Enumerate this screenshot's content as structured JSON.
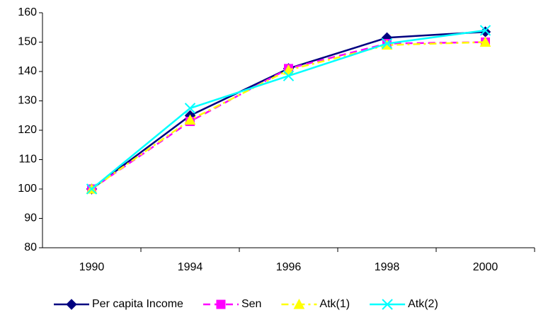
{
  "chart_data": {
    "type": "line",
    "categories": [
      "1990",
      "1994",
      "1996",
      "1998",
      "2000"
    ],
    "series": [
      {
        "name": "Per capita Income",
        "color": "#000080",
        "marker": "diamond",
        "dash": "solid",
        "values": [
          100,
          125,
          141,
          151.5,
          153.5
        ]
      },
      {
        "name": "Sen",
        "color": "#ff00ff",
        "marker": "square",
        "dash": "dash",
        "values": [
          100,
          123,
          141,
          149.5,
          150
        ]
      },
      {
        "name": "Atk(1)",
        "color": "#ffff00",
        "marker": "triangle",
        "dash": "dashdot",
        "values": [
          100,
          123.5,
          140.5,
          149,
          150
        ]
      },
      {
        "name": "Atk(2)",
        "color": "#00ffff",
        "marker": "x",
        "dash": "solid",
        "values": [
          100,
          127.5,
          138.5,
          149.5,
          154
        ]
      }
    ],
    "ylim": [
      80,
      160
    ],
    "yticks": [
      80,
      90,
      100,
      110,
      120,
      130,
      140,
      150,
      160
    ],
    "grid": false,
    "legend": "bottom"
  }
}
